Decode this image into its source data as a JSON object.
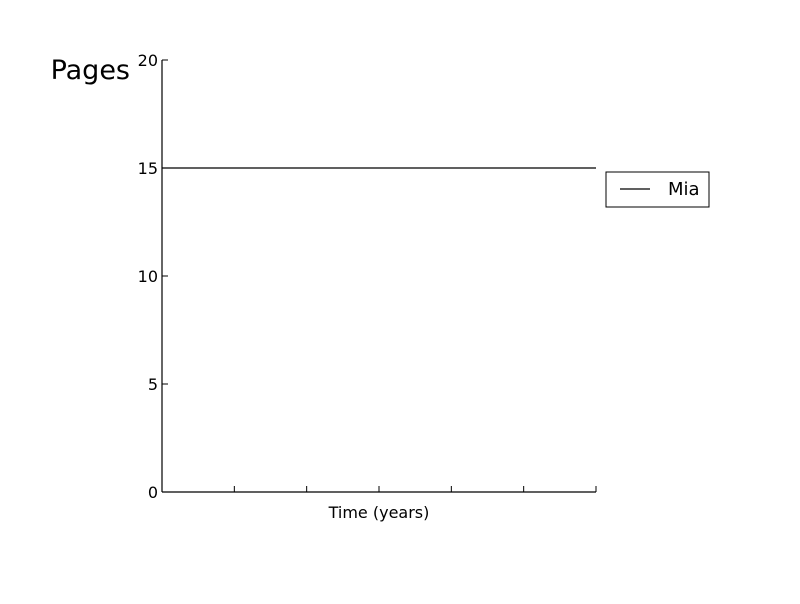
{
  "chart_data": {
    "type": "line",
    "title": "Pages",
    "xlabel": "Time (years)",
    "ylabel": "",
    "xlim": [
      0,
      6
    ],
    "ylim": [
      0,
      20
    ],
    "x_ticks": [
      0,
      1,
      2,
      3,
      4,
      5,
      6
    ],
    "x_tick_labels_shown": false,
    "y_ticks": [
      0,
      5,
      10,
      15,
      20
    ],
    "y_tick_labels": [
      "0",
      "5",
      "10",
      "15",
      "20"
    ],
    "grid": false,
    "legend_position": "right",
    "series": [
      {
        "name": "Mia",
        "color": "#000000",
        "x": [
          0,
          6
        ],
        "y": [
          15,
          15
        ]
      }
    ]
  }
}
